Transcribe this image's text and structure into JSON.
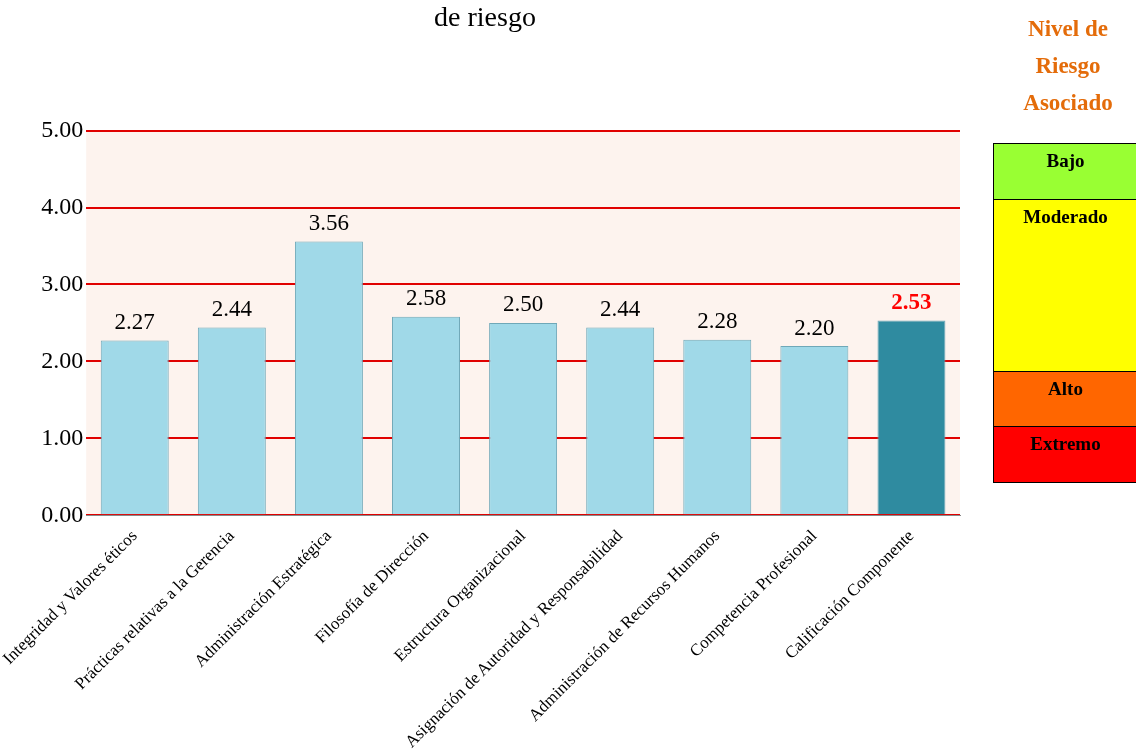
{
  "chart_data": [
    {
      "type": "bar",
      "title": "de riesgo",
      "categories": [
        "Integridad y Valores éticos",
        "Prácticas relativas a la Gerencia",
        "Administración Estratégica",
        "Filosofía de Dirección",
        "Estructura Organizacional",
        "Asignación de Autoridad y Responsabilidad",
        "Administración de Recursos Humanos",
        "Competencia Profesional",
        "Calificación Componente"
      ],
      "values": [
        2.27,
        2.44,
        3.56,
        2.58,
        2.5,
        2.44,
        2.28,
        2.2,
        2.53
      ],
      "colors": [
        "#a0d9e8",
        "#a0d9e8",
        "#a0d9e8",
        "#a0d9e8",
        "#a0d9e8",
        "#a0d9e8",
        "#a0d9e8",
        "#a0d9e8",
        "#2f8ba0"
      ],
      "ylim": [
        0,
        5
      ],
      "yticks": [
        {
          "value": 0,
          "label": "0.00"
        },
        {
          "value": 1,
          "label": "1.00"
        },
        {
          "value": 2,
          "label": "2.00"
        },
        {
          "value": 3,
          "label": "3.00"
        },
        {
          "value": 4,
          "label": "4.00"
        },
        {
          "value": 5,
          "label": "5.00"
        }
      ],
      "value_labels": [
        "2.27",
        "2.44",
        "3.56",
        "2.58",
        "2.50",
        "2.44",
        "2.28",
        "2.20",
        "2.53"
      ],
      "grid": "y",
      "legend": false
    },
    {
      "type": "other",
      "title": "Nivel de Riesgo Asociado",
      "categories": [
        "Bajo",
        "Moderado",
        "Alto",
        "Extremo"
      ],
      "colors": [
        "#99ff33",
        "#ffff00",
        "#ff6600",
        "#ff0000"
      ]
    }
  ]
}
